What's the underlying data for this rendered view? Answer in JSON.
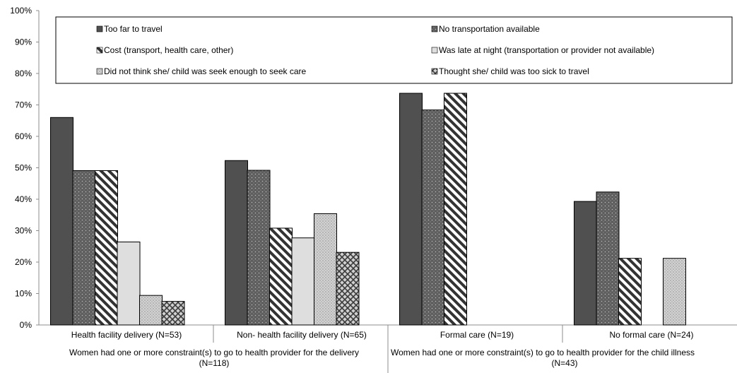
{
  "chart_data": {
    "type": "bar",
    "ylim": [
      0,
      100
    ],
    "yticks": [
      "0%",
      "10%",
      "20%",
      "30%",
      "40%",
      "50%",
      "60%",
      "70%",
      "80%",
      "90%",
      "100%"
    ],
    "categories": [
      "Health facility delivery (N=53)",
      "Non- health facility delivery (N=65)",
      "Formal care (N=19)",
      "No formal care (N=24)"
    ],
    "groups": [
      {
        "line1": "Women had one or more constraint(s) to go to health provider for the delivery",
        "line2": "(N=118)"
      },
      {
        "line1": "Women had one or more constraint(s) to go to health provider for the child illness",
        "line2": "(N=43)"
      }
    ],
    "legend_placement": "top",
    "series": [
      {
        "name": "Too far to travel",
        "values": [
          66,
          52.3,
          73.7,
          39.3
        ]
      },
      {
        "name": "No transportation available",
        "values": [
          49.1,
          49.2,
          68.4,
          42.3
        ]
      },
      {
        "name": "Cost (transport, health care, other)",
        "values": [
          49.1,
          30.8,
          73.7,
          21.2
        ]
      },
      {
        "name": "Was late at night (transportation or provider not available)",
        "values": [
          26.4,
          27.7,
          0,
          0
        ]
      },
      {
        "name": "Did not think she/ child was seek enough to seek care",
        "values": [
          9.4,
          35.4,
          0,
          21.2
        ]
      },
      {
        "name": "Thought she/ child was too sick to travel",
        "values": [
          7.5,
          23.1,
          0,
          0
        ]
      }
    ]
  },
  "colors": {
    "s1": "#505050",
    "s2": "#606060",
    "s3": "#3a3a3a",
    "s4": "#dedede",
    "s5": "#cfcfcf",
    "s6": "#8a8a8a"
  }
}
